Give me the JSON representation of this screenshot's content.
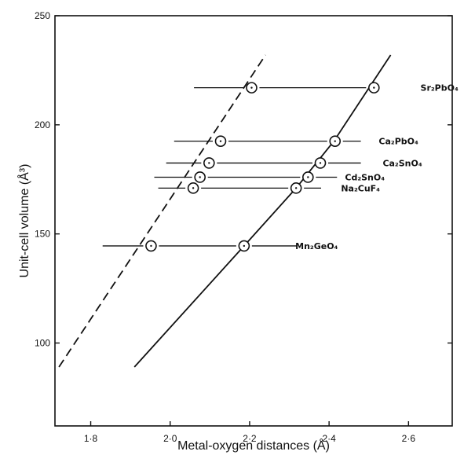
{
  "chart_data": {
    "type": "line",
    "title": "",
    "xlabel": "Metal-oxygen distances (Å)",
    "ylabel": "Unit-cell volume (Å³)",
    "xlim": [
      1.71,
      2.71
    ],
    "ylim": [
      62,
      250
    ],
    "x_ticks": [
      {
        "value": 1.8,
        "label": "1·8"
      },
      {
        "value": 2.0,
        "label": "2·0"
      },
      {
        "value": 2.2,
        "label": "2·2"
      },
      {
        "value": 2.4,
        "label": "2·4"
      },
      {
        "value": 2.6,
        "label": "2·6"
      }
    ],
    "y_ticks": [
      {
        "value": 100,
        "label": "100"
      },
      {
        "value": 150,
        "label": "150"
      },
      {
        "value": 200,
        "label": "200"
      },
      {
        "value": 250,
        "label": "250"
      }
    ],
    "grid": false,
    "lines": [
      {
        "style": "dashed",
        "x": [
          1.72,
          2.24
        ],
        "y": [
          89,
          232
        ]
      },
      {
        "style": "solid",
        "x": [
          1.91,
          2.186,
          2.317,
          2.412,
          2.555
        ],
        "y": [
          89,
          144.5,
          171,
          192.5,
          232
        ]
      }
    ],
    "compounds": [
      {
        "label": "Sr₂PbO₄",
        "volume": 217,
        "d_short": 2.205,
        "d_long": 2.513,
        "range": [
          2.06,
          2.46
        ],
        "label_x": 2.63
      },
      {
        "label": "Ca₂PbO₄",
        "volume": 192.5,
        "d_short": 2.127,
        "d_long": 2.415,
        "range": [
          2.01,
          2.48
        ],
        "label_x": 2.525
      },
      {
        "label": "Ca₂SnO₄",
        "volume": 182.5,
        "d_short": 2.098,
        "d_long": 2.378,
        "range": [
          1.99,
          2.48
        ],
        "label_x": 2.535
      },
      {
        "label": "Cd₂SnO₄",
        "volume": 176,
        "d_short": 2.075,
        "d_long": 2.347,
        "range": [
          1.96,
          2.42
        ],
        "label_x": 2.44
      },
      {
        "label": "Na₂CuF₄",
        "volume": 171,
        "d_short": 2.058,
        "d_long": 2.317,
        "range": [
          1.97,
          2.38
        ],
        "label_x": 2.43
      },
      {
        "label": "Mn₂GeO₄",
        "volume": 144.5,
        "d_short": 1.952,
        "d_long": 2.186,
        "range": [
          1.83,
          2.32
        ],
        "label_x": 2.315
      }
    ]
  }
}
